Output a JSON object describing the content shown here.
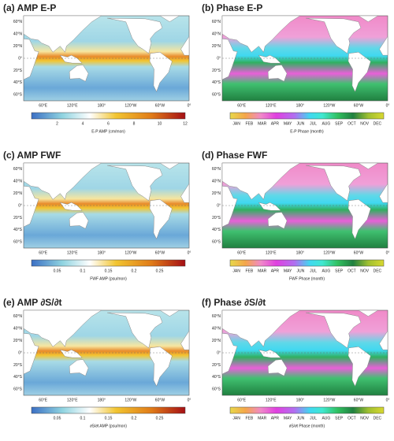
{
  "lat_labels": [
    "60°N",
    "40°N",
    "20°N",
    "0°",
    "20°S",
    "40°S",
    "60°S"
  ],
  "lon_labels": [
    "60°E",
    "120°E",
    "180°",
    "120°W",
    "60°W",
    "0°"
  ],
  "month_labels": [
    "JAN",
    "FEB",
    "MAR",
    "APR",
    "MAY",
    "JUN",
    "JUL",
    "AUG",
    "SEP",
    "OCT",
    "NOV",
    "DEC"
  ],
  "panels": [
    {
      "title": "(a) AMP E-P",
      "kind": "amp",
      "colorbar": {
        "ticks": [
          "2",
          "4",
          "6",
          "8",
          "10",
          "12"
        ],
        "label": "E-P AMP (cm/mon)"
      }
    },
    {
      "title": "(b) Phase E-P",
      "kind": "phase",
      "colorbar": {
        "label": "E-P Phase (month)"
      }
    },
    {
      "title": "(c) AMP FWF",
      "kind": "amp",
      "colorbar": {
        "ticks": [
          "0.05",
          "0.1",
          "0.15",
          "0.2",
          "0.25"
        ],
        "label": "FWF AMP (psu/mon)"
      }
    },
    {
      "title": "(d) Phase FWF",
      "kind": "phase",
      "colorbar": {
        "label": "FWF Phase (month)"
      }
    },
    {
      "title": "(e) AMP  ∂S/∂t",
      "kind": "amp",
      "colorbar": {
        "ticks": [
          "0.05",
          "0.1",
          "0.15",
          "0.2",
          "0.25"
        ],
        "label": "∂S/∂t AMP (psu/mon)"
      }
    },
    {
      "title": "(f) Phase  ∂S/∂t",
      "kind": "phase",
      "colorbar": {
        "label": "∂S/∂t Phase (month)"
      }
    }
  ]
}
